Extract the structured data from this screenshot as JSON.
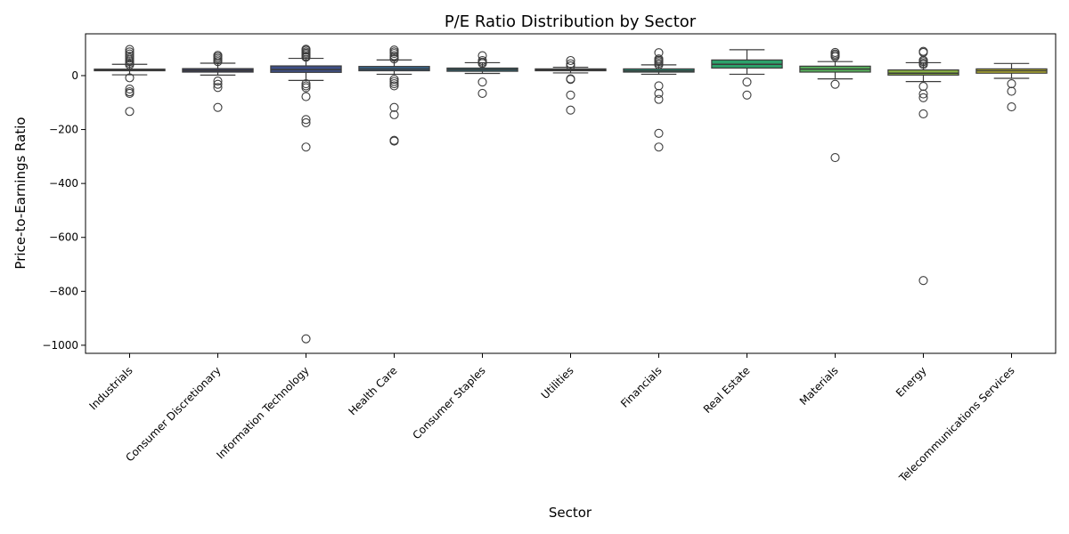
{
  "chart_data": {
    "type": "box",
    "title": "P/E Ratio Distribution by Sector",
    "xlabel": "Sector",
    "ylabel": "Price-to-Earnings Ratio",
    "ylim": [
      -1030,
      155
    ],
    "yticks": [
      0,
      -200,
      -400,
      -600,
      -800,
      -1000
    ],
    "grid": false,
    "categories": [
      "Industrials",
      "Consumer Discretionary",
      "Information Technology",
      "Health Care",
      "Consumer Staples",
      "Utilities",
      "Financials",
      "Real Estate",
      "Materials",
      "Energy",
      "Telecommunications Services"
    ],
    "boxes": [
      {
        "color": "#2f2f38",
        "q1": 18,
        "median": 21,
        "q3": 24,
        "whisker_low": 3,
        "whisker_high": 42,
        "outliers": [
          97,
          88,
          80,
          72,
          65,
          58,
          52,
          46,
          40,
          -8,
          -50,
          -60,
          -66,
          -133
        ]
      },
      {
        "color": "#3a3d62",
        "q1": 13,
        "median": 19,
        "q3": 26,
        "whisker_low": 2,
        "whisker_high": 46,
        "outliers": [
          75,
          70,
          64,
          58,
          52,
          -20,
          -32,
          -44,
          -118
        ]
      },
      {
        "color": "#3e4f86",
        "q1": 12,
        "median": 22,
        "q3": 36,
        "whisker_low": -18,
        "whisker_high": 64,
        "outliers": [
          98,
          94,
          88,
          83,
          78,
          72,
          68,
          -30,
          -38,
          -45,
          -78,
          -163,
          -175,
          -265,
          -976
        ]
      },
      {
        "color": "#37658a",
        "q1": 18,
        "median": 24,
        "q3": 34,
        "whisker_low": 5,
        "whisker_high": 58,
        "outliers": [
          95,
          88,
          82,
          74,
          68,
          62,
          -14,
          -22,
          -30,
          -38,
          -118,
          -145,
          -240,
          -243
        ]
      },
      {
        "color": "#2e7684",
        "q1": 16,
        "median": 22,
        "q3": 28,
        "whisker_low": 8,
        "whisker_high": 48,
        "outliers": [
          74,
          56,
          50,
          45,
          -24,
          -66
        ]
      },
      {
        "color": "#2b8680",
        "q1": 18,
        "median": 21,
        "q3": 25,
        "whisker_low": 10,
        "whisker_high": 31,
        "outliers": [
          56,
          44,
          36,
          -12,
          -14,
          -72,
          -128
        ]
      },
      {
        "color": "#26967b",
        "q1": 13,
        "median": 18,
        "q3": 25,
        "whisker_low": 5,
        "whisker_high": 40,
        "outliers": [
          85,
          62,
          57,
          52,
          46,
          40,
          -38,
          -66,
          -88,
          -214,
          -265
        ]
      },
      {
        "color": "#2ca26b",
        "q1": 28,
        "median": 42,
        "q3": 58,
        "whisker_low": 5,
        "whisker_high": 96,
        "outliers": [
          -24,
          -72
        ]
      },
      {
        "color": "#57af5b",
        "q1": 13,
        "median": 24,
        "q3": 35,
        "whisker_low": -12,
        "whisker_high": 52,
        "outliers": [
          86,
          80,
          75,
          70,
          -32,
          -304
        ]
      },
      {
        "color": "#8bb443",
        "q1": 2,
        "median": 9,
        "q3": 21,
        "whisker_low": -22,
        "whisker_high": 48,
        "outliers": [
          90,
          86,
          57,
          52,
          46,
          41,
          -40,
          -68,
          -82,
          -142,
          -760
        ]
      },
      {
        "color": "#bdb82d",
        "q1": 9,
        "median": 18,
        "q3": 25,
        "whisker_low": -10,
        "whisker_high": 45,
        "outliers": [
          -30,
          -58,
          -116
        ]
      }
    ]
  }
}
